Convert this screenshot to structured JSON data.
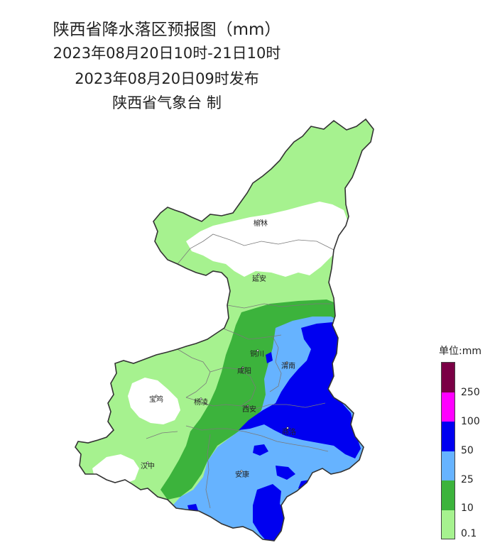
{
  "header": {
    "title": "陕西省降水落区预报图（mm）",
    "period": "2023年08月20日10时-21日10时",
    "issued": "2023年08月20日09时发布",
    "producer": "陕西省气象台 制"
  },
  "cities": {
    "yulin": "榆林",
    "yanan": "延安",
    "tongchuan": "铜川",
    "xianyang": "咸阳",
    "weinan": "渭南",
    "baoji": "宝鸡",
    "yangling": "杨凌",
    "xian": "西安",
    "shangluo": "商洛",
    "hanzhong": "汉中",
    "ankang": "安康"
  },
  "legend": {
    "title": "单位:mm",
    "levels": [
      {
        "label": "250",
        "color": "#7a0045"
      },
      {
        "label": "100",
        "color": "#ff00ff"
      },
      {
        "label": "50",
        "color": "#0000f0"
      },
      {
        "label": "25",
        "color": "#66b3ff"
      },
      {
        "label": "10",
        "color": "#3cb33c"
      },
      {
        "label": "0.1",
        "color": "#a6f28f"
      }
    ]
  },
  "colors": {
    "light_green": "#a6f28f",
    "green": "#3cb33c",
    "light_blue": "#66b3ff",
    "blue": "#0000f0"
  }
}
